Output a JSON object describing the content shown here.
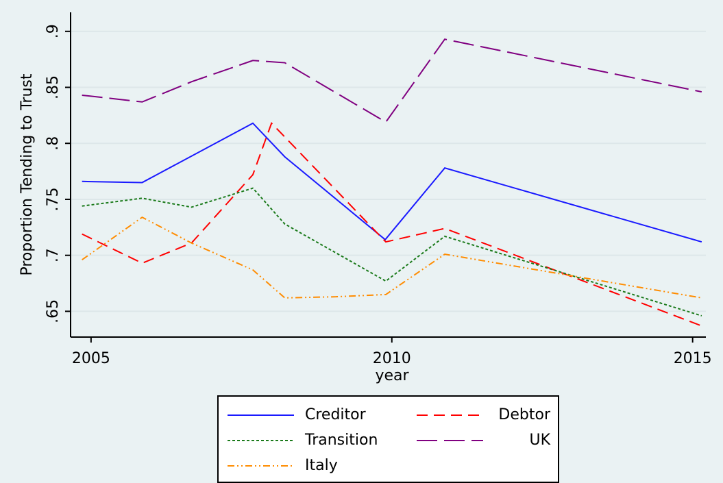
{
  "chart_data": {
    "type": "line",
    "y_label": "Proportion Tending to Trust",
    "x_label": "year",
    "xlim": [
      2004.66,
      2015.22
    ],
    "xticks": [
      2005,
      2010,
      2015
    ],
    "ylim": [
      0.627,
      0.917
    ],
    "yticks": [
      {
        "value": 0.65,
        "label": ".65"
      },
      {
        "value": 0.7,
        "label": ".7"
      },
      {
        "value": 0.75,
        "label": ".75"
      },
      {
        "value": 0.8,
        "label": ".8"
      },
      {
        "value": 0.85,
        "label": ".85"
      },
      {
        "value": 0.9,
        "label": ".9"
      }
    ],
    "grid": true,
    "legend_position": "bottom",
    "series": [
      {
        "name": "Creditor",
        "color": "#1a1aff",
        "dash": "none",
        "x": [
          2004.85,
          2005.85,
          2007.69,
          2008.22,
          2009.89,
          2010.88,
          2015.15
        ],
        "values": [
          0.766,
          0.765,
          0.818,
          0.788,
          0.714,
          0.778,
          0.712
        ]
      },
      {
        "name": "Debtor",
        "color": "#ff0000",
        "dash": "16 9",
        "x": [
          2004.85,
          2005.85,
          2006.67,
          2007.69,
          2008.0,
          2009.9,
          2010.88,
          2015.15
        ],
        "values": [
          0.719,
          0.693,
          0.711,
          0.772,
          0.818,
          0.712,
          0.724,
          0.637
        ]
      },
      {
        "name": "Transition",
        "color": "#1a7a1a",
        "dash": "4 3",
        "x": [
          2004.85,
          2005.85,
          2006.67,
          2007.69,
          2008.22,
          2009.9,
          2010.88,
          2015.15
        ],
        "values": [
          0.744,
          0.751,
          0.743,
          0.76,
          0.728,
          0.677,
          0.717,
          0.646
        ]
      },
      {
        "name": "UK",
        "color": "#800080",
        "dash": "30 10",
        "x": [
          2004.85,
          2005.85,
          2006.67,
          2007.69,
          2008.22,
          2009.9,
          2010.88,
          2015.15
        ],
        "values": [
          0.843,
          0.837,
          0.855,
          0.874,
          0.872,
          0.819,
          0.893,
          0.846
        ]
      },
      {
        "name": "Italy",
        "color": "#ff8c00",
        "dash": "10 4 2 4 2 4",
        "x": [
          2004.85,
          2005.85,
          2006.67,
          2007.69,
          2008.22,
          2009.07,
          2009.9,
          2010.88,
          2015.15
        ],
        "values": [
          0.696,
          0.734,
          0.711,
          0.687,
          0.662,
          0.663,
          0.665,
          0.701,
          0.662
        ]
      }
    ]
  }
}
